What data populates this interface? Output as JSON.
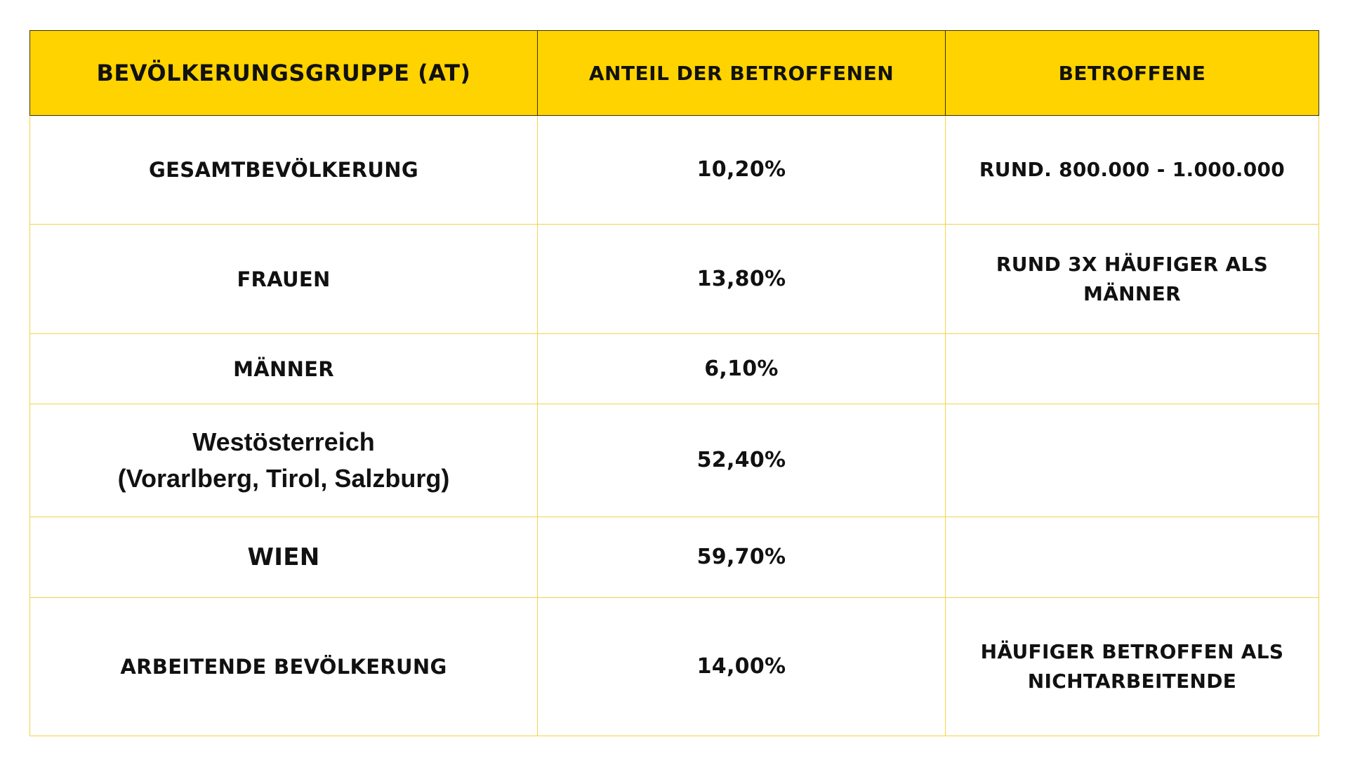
{
  "header": {
    "col1": "BEVÖLKERUNGSGRUPPE (AT)",
    "col2": "ANTEIL DER BETROFFENEN",
    "col3": "BETROFFENE"
  },
  "rows": [
    {
      "group": "GESAMTBEVÖLKERUNG",
      "share": "10,20%",
      "affected": "RUND. 800.000 - 1.000.000"
    },
    {
      "group": "FRAUEN",
      "share": "13,80%",
      "affected_line1": "RUND 3X HÄUFIGER ALS",
      "affected_line2": "MÄNNER"
    },
    {
      "group": "MÄNNER",
      "share": "6,10%",
      "affected": ""
    },
    {
      "group_line1": "Westösterreich",
      "group_line2": "(Vorarlberg, Tirol, Salzburg)",
      "share": "52,40%",
      "affected": ""
    },
    {
      "group": "WIEN",
      "share": "59,70%",
      "affected": ""
    },
    {
      "group": "ARBEITENDE BEVÖLKERUNG",
      "share": "14,00%",
      "affected_line1": "HÄUFIGER BETROFFEN ALS",
      "affected_line2": "NICHTARBEITENDE"
    }
  ],
  "colors": {
    "header_background": "#FFD300",
    "header_border": "#3a3000",
    "cell_border": "#F3D347",
    "text": "#111111"
  }
}
